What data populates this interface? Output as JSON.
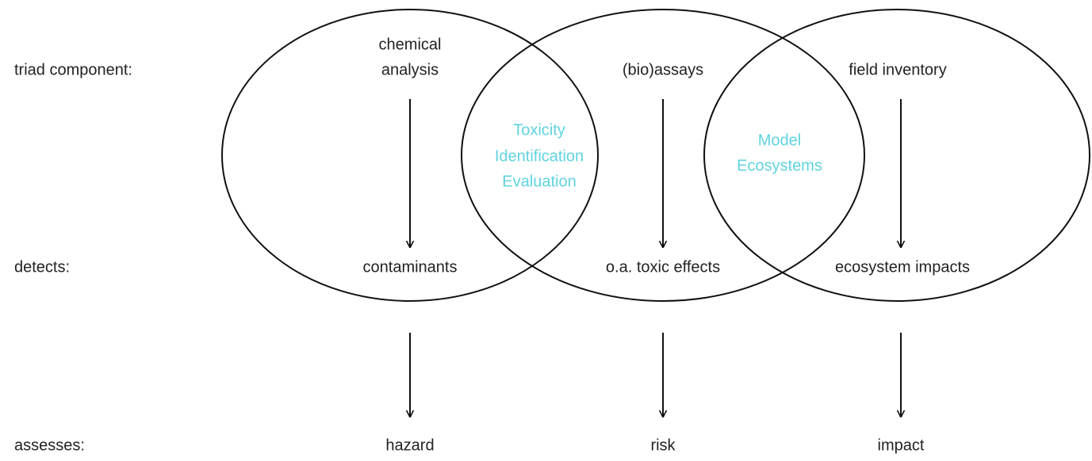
{
  "rows": [
    "triad component:",
    "detects:",
    "assesses:"
  ],
  "columns": [
    {
      "component": [
        "chemical",
        "analysis"
      ],
      "detects": "contaminants",
      "assesses": "hazard"
    },
    {
      "component": [
        "(bio)assays"
      ],
      "detects": "o.a. toxic effects",
      "assesses": "risk"
    },
    {
      "component": [
        "field inventory"
      ],
      "detects": "ecosystem impacts",
      "assesses": "impact"
    }
  ],
  "overlaps": [
    {
      "lines": [
        "Toxicity",
        "Identification",
        "Evaluation"
      ]
    },
    {
      "lines": [
        "Model",
        "Ecosystems"
      ]
    }
  ]
}
